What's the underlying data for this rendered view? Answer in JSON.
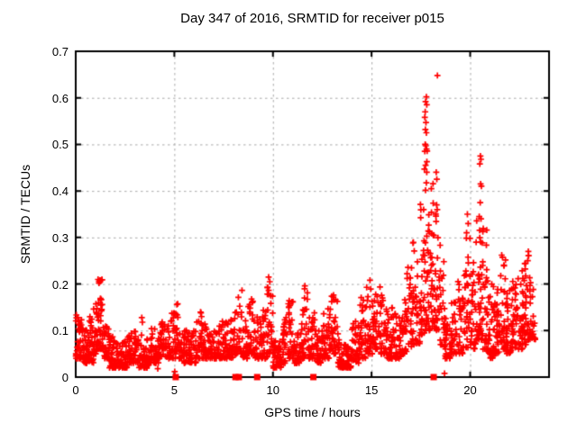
{
  "chart_data": {
    "type": "scatter",
    "title": "Day 347 of 2016, SRMTID for receiver p015",
    "xlabel": "GPS time / hours",
    "ylabel": "SRMTID / TECUs",
    "xlim": [
      0,
      24
    ],
    "ylim": [
      0,
      0.7
    ],
    "xticks": [
      0,
      5,
      10,
      15,
      20
    ],
    "xticklabels": [
      "0",
      "5",
      "10",
      "15",
      "20"
    ],
    "yticks": [
      0,
      0.1,
      0.2,
      0.3,
      0.4,
      0.5,
      0.6,
      0.7
    ],
    "yticklabels": [
      "0",
      "0.1",
      "0.2",
      "0.3",
      "0.4",
      "0.5",
      "0.6",
      "0.7"
    ],
    "grid": true,
    "grid_color": "#a8a8a8",
    "axis_color": "#000000",
    "marker_color": "#ff0000",
    "legend": "none",
    "seed": 1347,
    "series": [
      {
        "name": "srmtid-plus-markers",
        "style": "plus",
        "color": "#ff0000",
        "density_bins": [
          [
            0.0,
            0.3,
            0.04,
            0.135,
            38
          ],
          [
            0.3,
            0.6,
            0.03,
            0.12,
            34
          ],
          [
            0.6,
            0.9,
            0.03,
            0.13,
            34
          ],
          [
            0.9,
            1.1,
            0.05,
            0.16,
            24
          ],
          [
            1.1,
            1.4,
            0.06,
            0.21,
            40
          ],
          [
            1.4,
            1.7,
            0.04,
            0.14,
            30
          ],
          [
            1.7,
            2.1,
            0.02,
            0.09,
            44
          ],
          [
            2.1,
            2.6,
            0.02,
            0.08,
            50
          ],
          [
            2.6,
            3.2,
            0.03,
            0.1,
            56
          ],
          [
            3.2,
            3.7,
            0.02,
            0.1,
            48
          ],
          [
            3.7,
            4.2,
            0.03,
            0.11,
            46
          ],
          [
            4.2,
            4.7,
            0.04,
            0.12,
            44
          ],
          [
            4.7,
            5.0,
            0.04,
            0.15,
            30
          ],
          [
            5.0,
            5.3,
            0.04,
            0.16,
            30
          ],
          [
            5.3,
            5.7,
            0.03,
            0.11,
            36
          ],
          [
            5.7,
            6.1,
            0.03,
            0.1,
            36
          ],
          [
            6.1,
            6.5,
            0.04,
            0.14,
            34
          ],
          [
            6.5,
            7.0,
            0.04,
            0.12,
            42
          ],
          [
            7.0,
            7.5,
            0.04,
            0.12,
            42
          ],
          [
            7.5,
            8.0,
            0.04,
            0.13,
            42
          ],
          [
            8.0,
            8.45,
            0.05,
            0.19,
            38
          ],
          [
            8.45,
            8.75,
            0.04,
            0.14,
            28
          ],
          [
            8.75,
            9.05,
            0.05,
            0.17,
            28
          ],
          [
            9.05,
            9.45,
            0.04,
            0.13,
            34
          ],
          [
            9.45,
            9.7,
            0.04,
            0.15,
            24
          ],
          [
            9.7,
            10.0,
            0.05,
            0.2,
            30
          ],
          [
            10.0,
            10.45,
            0.02,
            0.09,
            46
          ],
          [
            10.45,
            10.75,
            0.03,
            0.13,
            28
          ],
          [
            10.75,
            11.05,
            0.04,
            0.165,
            30
          ],
          [
            11.05,
            11.45,
            0.03,
            0.11,
            36
          ],
          [
            11.45,
            11.8,
            0.04,
            0.19,
            32
          ],
          [
            11.8,
            12.15,
            0.04,
            0.14,
            32
          ],
          [
            12.15,
            12.5,
            0.03,
            0.1,
            34
          ],
          [
            12.5,
            12.9,
            0.04,
            0.15,
            36
          ],
          [
            12.9,
            13.3,
            0.05,
            0.18,
            36
          ],
          [
            13.3,
            13.7,
            0.02,
            0.08,
            44
          ],
          [
            13.7,
            14.0,
            0.02,
            0.07,
            36
          ],
          [
            14.0,
            14.35,
            0.03,
            0.12,
            32
          ],
          [
            14.35,
            14.7,
            0.04,
            0.18,
            32
          ],
          [
            14.7,
            15.05,
            0.05,
            0.2,
            32
          ],
          [
            15.05,
            15.45,
            0.06,
            0.2,
            38
          ],
          [
            15.45,
            15.8,
            0.05,
            0.18,
            34
          ],
          [
            15.8,
            16.1,
            0.04,
            0.16,
            30
          ],
          [
            16.1,
            16.5,
            0.04,
            0.14,
            36
          ],
          [
            16.5,
            16.8,
            0.05,
            0.18,
            30
          ],
          [
            16.8,
            17.1,
            0.06,
            0.24,
            30
          ],
          [
            17.1,
            17.45,
            0.07,
            0.3,
            34
          ],
          [
            17.45,
            17.7,
            0.09,
            0.38,
            30
          ],
          [
            17.7,
            17.95,
            0.1,
            0.5,
            34
          ],
          [
            17.95,
            18.2,
            0.1,
            0.42,
            30
          ],
          [
            18.2,
            18.45,
            0.1,
            0.36,
            26
          ],
          [
            18.45,
            18.7,
            0.07,
            0.3,
            22
          ],
          [
            18.7,
            19.0,
            0.04,
            0.14,
            30
          ],
          [
            19.0,
            19.35,
            0.05,
            0.18,
            30
          ],
          [
            19.35,
            19.7,
            0.05,
            0.22,
            30
          ],
          [
            19.7,
            20.0,
            0.06,
            0.3,
            32
          ],
          [
            20.0,
            20.3,
            0.06,
            0.25,
            32
          ],
          [
            20.3,
            20.6,
            0.08,
            0.35,
            36
          ],
          [
            20.6,
            20.9,
            0.06,
            0.32,
            34
          ],
          [
            20.9,
            21.2,
            0.04,
            0.22,
            34
          ],
          [
            21.2,
            21.5,
            0.05,
            0.2,
            34
          ],
          [
            21.5,
            21.8,
            0.06,
            0.26,
            34
          ],
          [
            21.8,
            22.1,
            0.05,
            0.19,
            34
          ],
          [
            22.1,
            22.4,
            0.06,
            0.21,
            34
          ],
          [
            22.4,
            22.7,
            0.06,
            0.23,
            34
          ],
          [
            22.7,
            23.0,
            0.07,
            0.27,
            32
          ],
          [
            23.0,
            23.3,
            0.08,
            0.25,
            28
          ]
        ],
        "outliers": [
          [
            18.34,
            0.648
          ],
          [
            17.78,
            0.602
          ],
          [
            17.74,
            0.592
          ],
          [
            17.8,
            0.585
          ],
          [
            17.72,
            0.57
          ],
          [
            17.7,
            0.558
          ],
          [
            17.76,
            0.547
          ],
          [
            17.73,
            0.532
          ],
          [
            17.78,
            0.525
          ],
          [
            17.72,
            0.5
          ],
          [
            17.75,
            0.497
          ],
          [
            17.79,
            0.49
          ],
          [
            17.7,
            0.485
          ],
          [
            17.74,
            0.455
          ],
          [
            17.68,
            0.447
          ],
          [
            17.8,
            0.44
          ],
          [
            18.28,
            0.44
          ],
          [
            18.31,
            0.425
          ],
          [
            18.3,
            0.37
          ],
          [
            18.33,
            0.36
          ],
          [
            20.52,
            0.475
          ],
          [
            20.55,
            0.468
          ],
          [
            20.49,
            0.458
          ],
          [
            20.53,
            0.415
          ],
          [
            20.57,
            0.41
          ],
          [
            20.51,
            0.375
          ],
          [
            20.46,
            0.345
          ],
          [
            20.55,
            0.34
          ],
          [
            19.86,
            0.35
          ],
          [
            19.9,
            0.33
          ],
          [
            19.82,
            0.31
          ],
          [
            9.78,
            0.215
          ],
          [
            9.84,
            0.205
          ],
          [
            1.22,
            0.208
          ],
          [
            1.18,
            0.202
          ],
          [
            14.92,
            0.208
          ],
          [
            11.62,
            0.196
          ],
          [
            3.35,
            0.128
          ],
          [
            3.38,
            0.118
          ],
          [
            6.35,
            0.138
          ],
          [
            6.38,
            0.13
          ],
          [
            22.95,
            0.27
          ],
          [
            22.92,
            0.25
          ],
          [
            21.6,
            0.262
          ],
          [
            18.7,
            0.008
          ],
          [
            4.16,
            0.018
          ],
          [
            5.02,
            0.012
          ]
        ]
      },
      {
        "name": "flag-square-markers",
        "style": "filled-square",
        "color": "#ff0000",
        "points": [
          [
            5.07,
            0
          ],
          [
            8.1,
            0
          ],
          [
            8.27,
            0
          ],
          [
            9.2,
            0
          ],
          [
            12.05,
            0
          ],
          [
            18.15,
            0
          ]
        ]
      }
    ]
  }
}
